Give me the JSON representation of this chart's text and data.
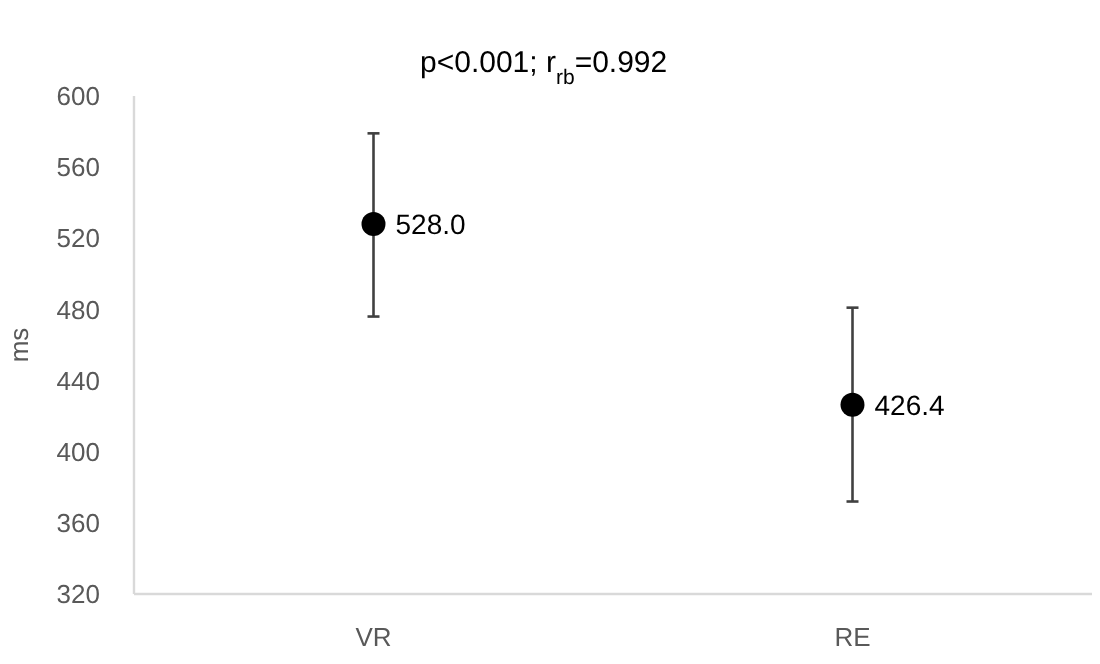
{
  "chart_data": {
    "type": "scatter",
    "ylabel": "ms",
    "categories": [
      "VR",
      "RE"
    ],
    "values": [
      528.0,
      426.4
    ],
    "errors": [
      [
        476,
        579
      ],
      [
        372,
        481
      ]
    ],
    "value_labels": [
      "528.0",
      "426.4"
    ],
    "color": "#000000",
    "marker": "circle",
    "grid": false,
    "ylim": [
      320,
      600
    ],
    "yticks": [
      320,
      360,
      400,
      440,
      480,
      520,
      560,
      600
    ],
    "annotations": [
      "p<0.001; r$_{rb}$=0.992"
    ]
  }
}
